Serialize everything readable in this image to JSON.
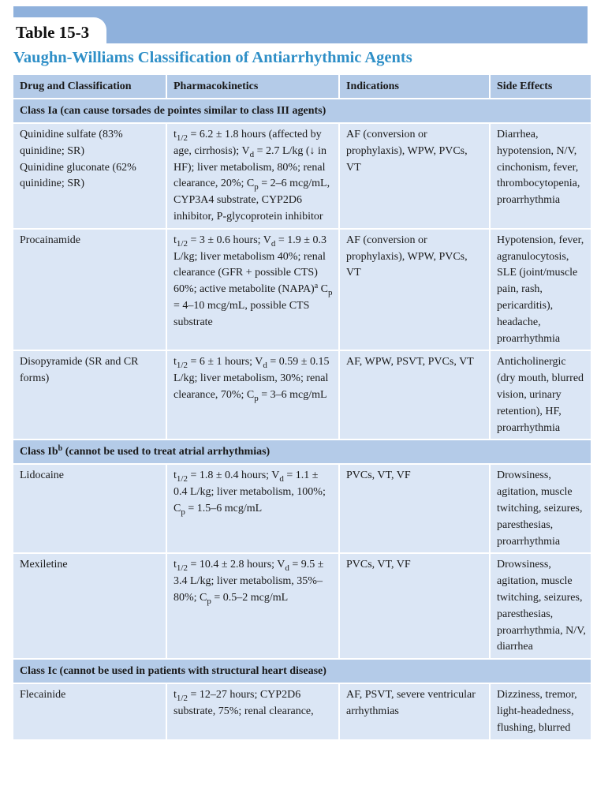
{
  "header": {
    "table_number": "Table 15-3",
    "title": "Vaughn-Williams Classification of Antiarrhythmic Agents"
  },
  "colors": {
    "banner": "#8fb1dc",
    "header_row": "#b4cbe8",
    "cell": "#dbe6f5",
    "title": "#2f8fc7"
  },
  "columns": [
    "Drug and Classification",
    "Pharmacokinetics",
    "Indications",
    "Side Effects"
  ],
  "sections": [
    {
      "label": "Class Ia (can cause torsades de pointes similar to class III agents)",
      "rows": [
        {
          "drug": [
            "Quinidine sulfate (83% quinidine; SR)",
            "Quinidine gluconate (62% quinidine; SR)"
          ],
          "pk": "t_{1/2} = 6.2 ± 1.8 hours (affected by age, cirrhosis); V_{d} = 2.7 L/kg (↓ in HF); liver metabolism, 80%; renal clearance, 20%; C_{p} = 2–6 mcg/mL, CYP3A4 substrate, CYP2D6 inhibitor, P-glycoprotein inhibitor",
          "indications": "AF (conversion or prophylaxis), WPW, PVCs, VT",
          "side_effects": "Diarrhea, hypotension, N/V, cinchonism, fever, thrombocytopenia, proarrhythmia"
        },
        {
          "drug": [
            "Procainamide"
          ],
          "pk": "t_{1/2} = 3 ± 0.6 hours; V_{d} = 1.9 ± 0.3 L/kg; liver metabolism 40%; renal clearance (GFR + possible CTS) 60%; active metabolite (NAPA)^{a} C_{p} = 4–10 mcg/mL, possible CTS substrate",
          "indications": "AF (conversion or prophylaxis), WPW, PVCs, VT",
          "side_effects": "Hypotension, fever, agranulocytosis, SLE (joint/muscle pain, rash, pericarditis), headache, proarrhythmia"
        },
        {
          "drug": [
            "Disopyramide (SR and CR forms)"
          ],
          "pk": "t_{1/2} = 6 ± 1 hours; V_{d} = 0.59 ± 0.15 L/kg; liver metabolism, 30%; renal clearance, 70%; C_{p} = 3–6 mcg/mL",
          "indications": "AF, WPW, PSVT, PVCs, VT",
          "side_effects": "Anticholinergic (dry mouth, blurred vision, urinary retention), HF, proarrhythmia"
        }
      ]
    },
    {
      "label": "Class Ib^{b} (cannot be used to treat atrial arrhythmias)",
      "rows": [
        {
          "drug": [
            "Lidocaine"
          ],
          "pk": "t_{1/2} = 1.8 ± 0.4 hours; V_{d} = 1.1 ± 0.4 L/kg; liver metabolism, 100%; C_{p} = 1.5–6 mcg/mL",
          "indications": "PVCs, VT, VF",
          "side_effects": "Drowsiness, agitation, muscle twitching, seizures, paresthesias, proarrhythmia"
        },
        {
          "drug": [
            "Mexiletine"
          ],
          "pk": "t_{1/2} = 10.4 ± 2.8 hours; V_{d} = 9.5 ± 3.4 L/kg; liver metabolism, 35%–80%; C_{p} = 0.5–2 mcg/mL",
          "indications": "PVCs, VT, VF",
          "side_effects": "Drowsiness, agitation, muscle twitching, seizures, paresthesias, proarrhythmia, N/V, diarrhea"
        }
      ]
    },
    {
      "label": "Class Ic (cannot be used in patients with structural heart disease)",
      "rows": [
        {
          "drug": [
            "Flecainide"
          ],
          "pk": "t_{1/2} = 12–27 hours; CYP2D6 substrate, 75%; renal clearance,",
          "indications": "AF, PSVT, severe ventricular arrhythmias",
          "side_effects": "Dizziness, tremor, light-headedness, flushing, blurred"
        }
      ]
    }
  ]
}
